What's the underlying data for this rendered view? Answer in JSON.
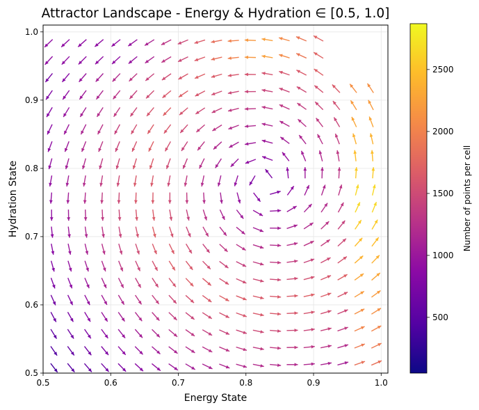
{
  "chart_data": {
    "type": "quiver",
    "title": "Attractor Landscape - Energy & Hydration ∈ [0.5, 1.0]",
    "xlabel": "Energy State",
    "ylabel": "Hydration State",
    "xlim": [
      0.5,
      1.01
    ],
    "ylim": [
      0.5,
      1.01
    ],
    "xticks": [
      "0.5",
      "0.6",
      "0.7",
      "0.8",
      "0.9",
      "1.0"
    ],
    "yticks": [
      "0.5",
      "0.6",
      "0.7",
      "0.8",
      "0.9",
      "1.0"
    ],
    "grid": true,
    "colormap": "plasma",
    "colorbar": {
      "label": "Number of points per cell",
      "range": [
        50,
        2870
      ],
      "ticks": [
        "500",
        "1000",
        "1500",
        "2000",
        "2500"
      ]
    },
    "grid_spacing": 0.025,
    "fixed_point": [
      0.83,
      0.78
    ],
    "description_field": "arrows show mean state transition direction; color = number of points per cell"
  }
}
